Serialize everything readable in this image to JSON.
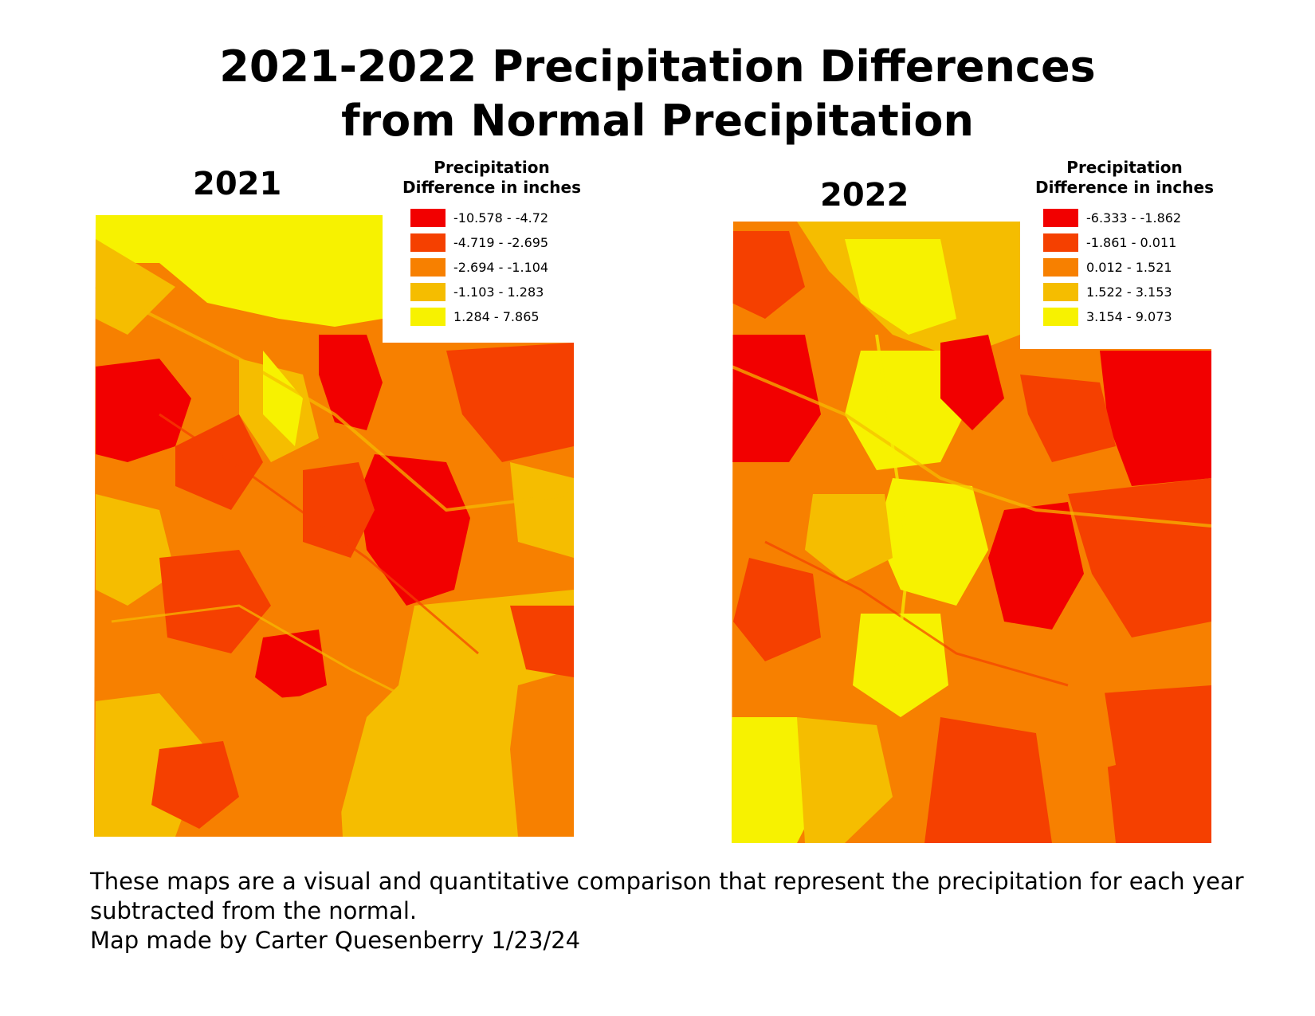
{
  "title": {
    "line1": "2021-2022 Precipitation Differences",
    "line2": "from Normal Precipitation"
  },
  "colors": {
    "class1": "#f20000",
    "class2": "#f54000",
    "class3": "#f78000",
    "class4": "#f5bd00",
    "class5": "#f7f200"
  },
  "maps": [
    {
      "year": "2021",
      "legend": {
        "title_line1": "Precipitation",
        "title_line2": "Difference in inches",
        "classes": [
          "-10.578 - -4.72",
          "-4.719 - -2.695",
          "-2.694 - -1.104",
          "-1.103 - 1.283",
          "1.284 - 7.865"
        ]
      }
    },
    {
      "year": "2022",
      "legend": {
        "title_line1": "Precipitation",
        "title_line2": "Difference in inches",
        "classes": [
          "-6.333 - -1.862",
          "-1.861 - 0.011",
          "0.012 - 1.521",
          "1.522 - 3.153",
          "3.154 - 9.073"
        ]
      }
    }
  ],
  "caption": {
    "line1": "These maps are a visual and quantitative comparison that represent the precipitation for each year",
    "line2": "subtracted from the normal.",
    "line3": "Map made by Carter Quesenberry 1/23/24"
  }
}
